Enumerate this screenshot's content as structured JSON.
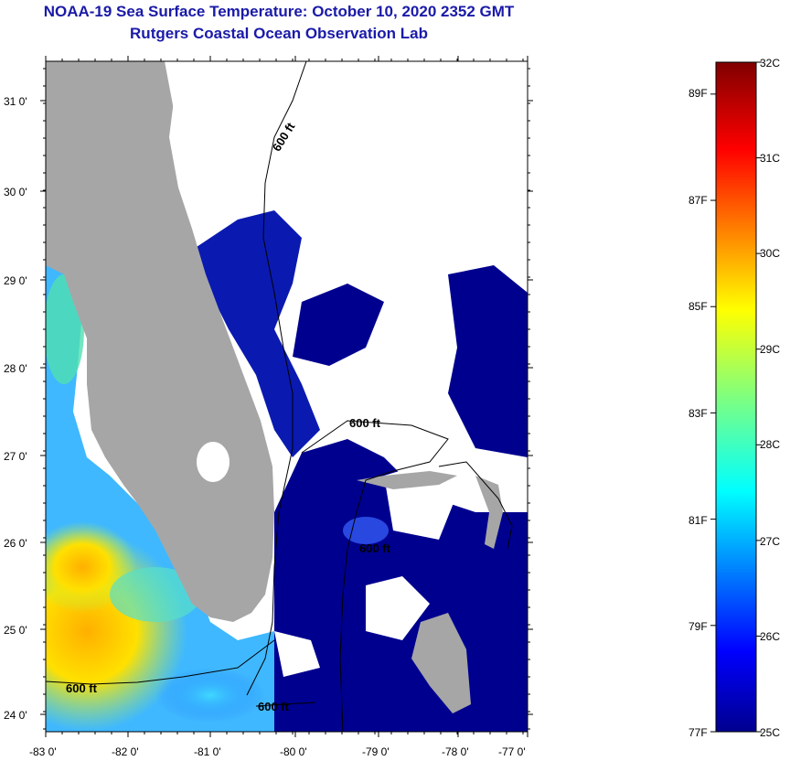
{
  "header": {
    "title": "NOAA-19 Sea Surface Temperature:  October 10, 2020 2352 GMT",
    "subtitle": "Rutgers Coastal Ocean Observation Lab"
  },
  "map": {
    "lat_ticks": [
      "31 0'",
      "30 0'",
      "29 0'",
      "28 0'",
      "27 0'",
      "26 0'",
      "25 0'",
      "24 0'"
    ],
    "lon_ticks": [
      "-83 0'",
      "-82 0'",
      "-81 0'",
      "-80 0'",
      "-79 0'",
      "-78 0'",
      "-77 0'"
    ],
    "contour_labels": [
      "600 ft",
      "600 ft",
      "600 ft",
      "600 ft",
      "600 ft"
    ],
    "colors": {
      "land": "#a6a6a6",
      "cloud": "#ffffff",
      "cold": "#00008f",
      "warm": "#ffc000"
    }
  },
  "colorbar": {
    "celsius": [
      "32C",
      "31C",
      "30C",
      "29C",
      "28C",
      "27C",
      "26C",
      "25C"
    ],
    "fahrenheit": [
      "89F",
      "87F",
      "85F",
      "83F",
      "81F",
      "79F",
      "77F"
    ],
    "range_c": [
      25,
      32
    ]
  }
}
